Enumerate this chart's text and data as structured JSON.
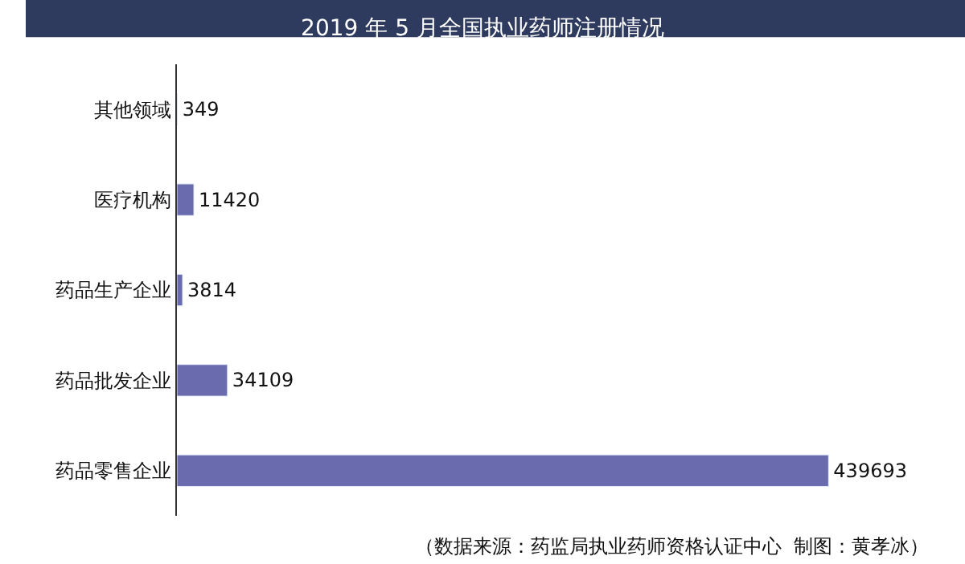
{
  "chart_data": {
    "type": "bar",
    "orientation": "horizontal",
    "title": "2019 年 5 月全国执业药师注册情况",
    "categories": [
      "其他领域",
      "医疗机构",
      "药品生产企业",
      "药品批发企业",
      "药品零售企业"
    ],
    "values": [
      349,
      11420,
      3814,
      34109,
      439693
    ],
    "color": "#6a6aae",
    "data_labels": true,
    "legend": false,
    "tick_labels": "y",
    "annotations": [
      "（数据来源：药监局执业药师资格认证中心  制图：黄孝冰）"
    ]
  }
}
